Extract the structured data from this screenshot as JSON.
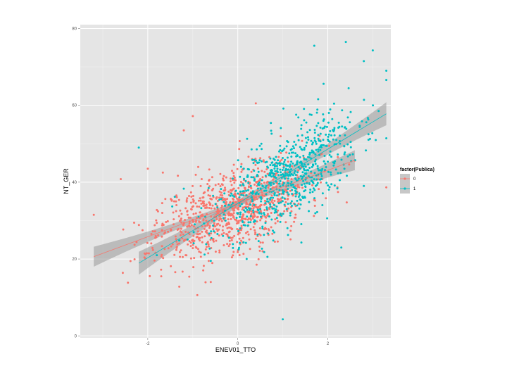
{
  "chart_data": {
    "type": "scatter",
    "xlabel": "ENEV01_TTO",
    "ylabel": "NT_GER",
    "xlim": [
      -3.5,
      3.4
    ],
    "ylim": [
      -0.5,
      81.0
    ],
    "x_ticks": [
      -2,
      0,
      2
    ],
    "x_tick_labels": [
      "-2",
      "0",
      "2"
    ],
    "y_ticks": [
      0,
      20,
      40,
      60,
      80
    ],
    "y_tick_labels": [
      "0",
      "20",
      "40",
      "60",
      "80"
    ],
    "grid": true,
    "background": "#e5e5e5",
    "legend": {
      "title": "factor(Publica)",
      "placement": "right",
      "entries": [
        "0",
        "1"
      ]
    },
    "series": [
      {
        "name": "0",
        "color": "#f8766d",
        "cloud": {
          "n": 900,
          "x_mean": -0.15,
          "x_sd": 0.85,
          "y_intercept": 33.5,
          "y_slope": 4.2,
          "y_sd": 5.5,
          "seed": 11
        },
        "points": [
          {
            "x": -2.6,
            "y": 40.8
          },
          {
            "x": -1.0,
            "y": 57.2
          },
          {
            "x": -1.2,
            "y": 53.5
          },
          {
            "x": -0.9,
            "y": 10.6
          },
          {
            "x": -0.6,
            "y": 14.0
          },
          {
            "x": 2.6,
            "y": 45.6
          },
          {
            "x": -2.0,
            "y": 43.5
          },
          {
            "x": -1.7,
            "y": 15.5
          },
          {
            "x": -3.2,
            "y": 31.5
          },
          {
            "x": 0.4,
            "y": 60.5
          },
          {
            "x": -1.3,
            "y": 12.8
          }
        ],
        "fit": {
          "x": [
            -3.2,
            2.6
          ],
          "y": [
            20.6,
            45.7
          ],
          "band": 2.0
        }
      },
      {
        "name": "1",
        "color": "#00bfc4",
        "cloud": {
          "n": 700,
          "x_mean": 1.05,
          "x_sd": 0.8,
          "y_intercept": 34.0,
          "y_slope": 6.6,
          "y_sd": 6.0,
          "seed": 23
        },
        "points": [
          {
            "x": -2.2,
            "y": 49.0
          },
          {
            "x": 1.7,
            "y": 75.5
          },
          {
            "x": 2.4,
            "y": 76.5
          },
          {
            "x": 3.0,
            "y": 74.3
          },
          {
            "x": 3.3,
            "y": 69.0
          },
          {
            "x": 3.3,
            "y": 66.6
          },
          {
            "x": 2.8,
            "y": 71.5
          },
          {
            "x": 1.0,
            "y": 4.3
          },
          {
            "x": -1.8,
            "y": 21.0
          },
          {
            "x": -1.4,
            "y": 36.2
          },
          {
            "x": -1.2,
            "y": 38.3
          },
          {
            "x": 2.9,
            "y": 56.3
          },
          {
            "x": 2.3,
            "y": 23.0
          },
          {
            "x": 2.8,
            "y": 39.0
          },
          {
            "x": -0.6,
            "y": 19.5
          }
        ],
        "fit": {
          "x": [
            -2.2,
            3.3
          ],
          "y": [
            18.9,
            57.8
          ],
          "band": 2.3
        }
      }
    ]
  }
}
